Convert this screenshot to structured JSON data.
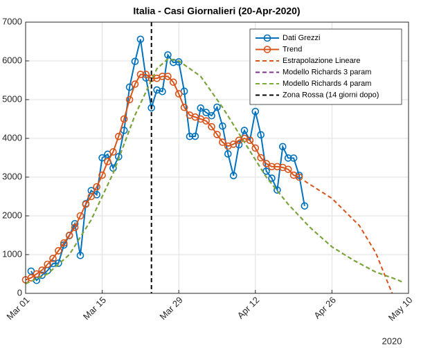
{
  "chart_data": {
    "type": "line",
    "title": "Italia - Casi Giornalieri (20-Apr-2020)",
    "x_axis_year": "2020",
    "xlim": [
      "2020-03-01",
      "2020-05-10"
    ],
    "xticks": [
      {
        "value": "2020-03-01",
        "label": "Mar 01"
      },
      {
        "value": "2020-03-15",
        "label": "Mar 15"
      },
      {
        "value": "2020-03-29",
        "label": "Mar 29"
      },
      {
        "value": "2020-04-12",
        "label": "Apr 12"
      },
      {
        "value": "2020-04-26",
        "label": "Apr 26"
      },
      {
        "value": "2020-05-10",
        "label": "May 10"
      }
    ],
    "ylim": [
      0,
      7000
    ],
    "yticks": [
      0,
      1000,
      2000,
      3000,
      4000,
      5000,
      6000,
      7000
    ],
    "grid": true,
    "legend": "upper right",
    "series": [
      {
        "name": "Dati Grezzi",
        "color": "#0072bd",
        "line_style": "-",
        "marker": "o",
        "x": [
          "2020-03-02",
          "2020-03-03",
          "2020-03-04",
          "2020-03-05",
          "2020-03-06",
          "2020-03-07",
          "2020-03-08",
          "2020-03-09",
          "2020-03-10",
          "2020-03-11",
          "2020-03-12",
          "2020-03-13",
          "2020-03-14",
          "2020-03-15",
          "2020-03-16",
          "2020-03-17",
          "2020-03-18",
          "2020-03-19",
          "2020-03-20",
          "2020-03-21",
          "2020-03-22",
          "2020-03-23",
          "2020-03-24",
          "2020-03-25",
          "2020-03-26",
          "2020-03-27",
          "2020-03-28",
          "2020-03-29",
          "2020-03-30",
          "2020-03-31",
          "2020-04-01",
          "2020-04-02",
          "2020-04-03",
          "2020-04-04",
          "2020-04-05",
          "2020-04-06",
          "2020-04-07",
          "2020-04-08",
          "2020-04-09",
          "2020-04-10",
          "2020-04-11",
          "2020-04-12",
          "2020-04-13",
          "2020-04-14",
          "2020-04-15",
          "2020-04-16",
          "2020-04-17",
          "2020-04-18",
          "2020-04-19",
          "2020-04-20",
          "2020-04-21"
        ],
        "values": [
          573,
          335,
          466,
          587,
          769,
          778,
          1247,
          1492,
          1797,
          977,
          2313,
          2651,
          2547,
          3497,
          3590,
          3233,
          3526,
          4207,
          5322,
          5986,
          6557,
          5560,
          4789,
          5249,
          5210,
          6153,
          5959,
          5974,
          5217,
          4050,
          4053,
          4782,
          4668,
          4585,
          4805,
          4316,
          3599,
          3039,
          3836,
          4204,
          3951,
          4694,
          4092,
          3153,
          2972,
          2667,
          3786,
          3493,
          3491,
          3047,
          2256
        ]
      },
      {
        "name": "Trend",
        "color": "#d95319",
        "line_style": "-",
        "marker": "o",
        "x": [
          "2020-03-01",
          "2020-03-02",
          "2020-03-03",
          "2020-03-04",
          "2020-03-05",
          "2020-03-06",
          "2020-03-07",
          "2020-03-08",
          "2020-03-09",
          "2020-03-10",
          "2020-03-11",
          "2020-03-12",
          "2020-03-13",
          "2020-03-14",
          "2020-03-15",
          "2020-03-16",
          "2020-03-17",
          "2020-03-18",
          "2020-03-19",
          "2020-03-20",
          "2020-03-21",
          "2020-03-22",
          "2020-03-23",
          "2020-03-24",
          "2020-03-25",
          "2020-03-26",
          "2020-03-27",
          "2020-03-28",
          "2020-03-29",
          "2020-03-30",
          "2020-03-31",
          "2020-04-01",
          "2020-04-02",
          "2020-04-03",
          "2020-04-04",
          "2020-04-05",
          "2020-04-06",
          "2020-04-07",
          "2020-04-08",
          "2020-04-09",
          "2020-04-10",
          "2020-04-11",
          "2020-04-12",
          "2020-04-13",
          "2020-04-14",
          "2020-04-15",
          "2020-04-16",
          "2020-04-17",
          "2020-04-18",
          "2020-04-19",
          "2020-04-20"
        ],
        "values": [
          350,
          400,
          500,
          600,
          750,
          900,
          1100,
          1300,
          1500,
          1700,
          2000,
          2300,
          2500,
          2750,
          3050,
          3400,
          3650,
          4050,
          4500,
          5000,
          5400,
          5650,
          5650,
          5550,
          5550,
          5600,
          5600,
          5450,
          5150,
          4800,
          4600,
          4550,
          4500,
          4450,
          4300,
          4100,
          3900,
          3800,
          3850,
          3950,
          4000,
          3950,
          3750,
          3500,
          3350,
          3270,
          3270,
          3250,
          3200,
          3050,
          3000
        ]
      },
      {
        "name": "Estrapolazione Lineare",
        "color": "#d95319",
        "line_style": "--",
        "x": [
          "2020-04-21",
          "2020-04-26",
          "2020-05-01",
          "2020-05-04",
          "2020-05-07"
        ],
        "values": [
          2900,
          2450,
          1750,
          1050,
          0
        ]
      },
      {
        "name": "Modello Richards 3 param",
        "color": "#7e2f8e",
        "line_style": "--",
        "x": [
          "2020-03-01",
          "2020-03-05",
          "2020-03-09",
          "2020-03-13",
          "2020-03-17",
          "2020-03-21",
          "2020-03-25",
          "2020-03-27",
          "2020-03-29",
          "2020-04-02",
          "2020-04-06",
          "2020-04-10",
          "2020-04-14",
          "2020-04-18",
          "2020-04-22",
          "2020-04-26",
          "2020-04-30",
          "2020-05-04",
          "2020-05-08",
          "2020-05-09"
        ],
        "values": [
          250,
          500,
          1000,
          1900,
          3100,
          4600,
          5800,
          6050,
          6000,
          5600,
          4800,
          3900,
          3000,
          2300,
          1700,
          1200,
          850,
          550,
          350,
          280
        ]
      },
      {
        "name": "Modello Richards 4 param",
        "color": "#77ac30",
        "line_style": "--",
        "x": [
          "2020-03-01",
          "2020-03-05",
          "2020-03-09",
          "2020-03-13",
          "2020-03-17",
          "2020-03-21",
          "2020-03-25",
          "2020-03-27",
          "2020-03-29",
          "2020-04-02",
          "2020-04-06",
          "2020-04-10",
          "2020-04-14",
          "2020-04-18",
          "2020-04-22",
          "2020-04-26",
          "2020-04-30",
          "2020-05-04",
          "2020-05-08",
          "2020-05-09"
        ],
        "values": [
          250,
          500,
          1000,
          1900,
          3100,
          4600,
          5800,
          6050,
          6000,
          5600,
          4800,
          3900,
          3000,
          2300,
          1700,
          1200,
          850,
          550,
          350,
          280
        ]
      },
      {
        "name": "Zona Rossa (14 giorni dopo)",
        "color": "#000000",
        "line_style": "--",
        "vline": "2020-03-24"
      }
    ]
  }
}
